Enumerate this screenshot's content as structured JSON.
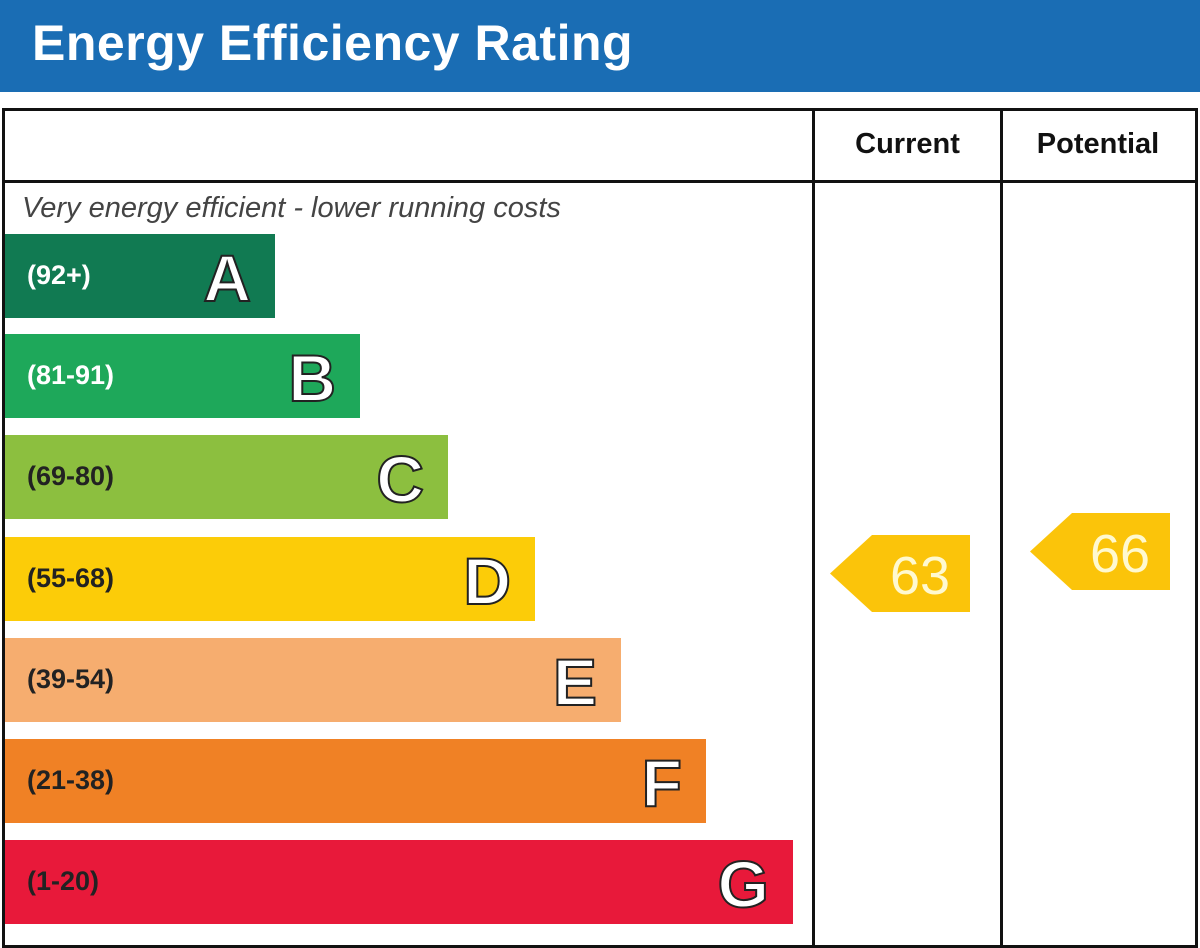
{
  "header": {
    "title": "Energy Efficiency Rating"
  },
  "columns": {
    "current": "Current",
    "potential": "Potential"
  },
  "chart_data": {
    "type": "bar",
    "title": "Energy Efficiency Rating",
    "subtitle": "Very energy efficient - lower running costs",
    "bands": [
      {
        "letter": "A",
        "range": "(92+)",
        "color": "#117a52",
        "text_color": "#ffffff"
      },
      {
        "letter": "B",
        "range": "(81-91)",
        "color": "#1ea85a",
        "text_color": "#ffffff"
      },
      {
        "letter": "C",
        "range": "(69-80)",
        "color": "#8cbf3f",
        "text_color": "#222222"
      },
      {
        "letter": "D",
        "range": "(55-68)",
        "color": "#fccc08",
        "text_color": "#222222"
      },
      {
        "letter": "E",
        "range": "(39-54)",
        "color": "#f6ad6f",
        "text_color": "#222222"
      },
      {
        "letter": "F",
        "range": "(21-38)",
        "color": "#f08125",
        "text_color": "#222222"
      },
      {
        "letter": "G",
        "range": "(1-20)",
        "color": "#e8193a",
        "text_color": "#222222"
      }
    ],
    "current": {
      "value": 63,
      "band": "D",
      "color": "#fbc40a"
    },
    "potential": {
      "value": 66,
      "band": "D",
      "color": "#fbc40a"
    }
  }
}
